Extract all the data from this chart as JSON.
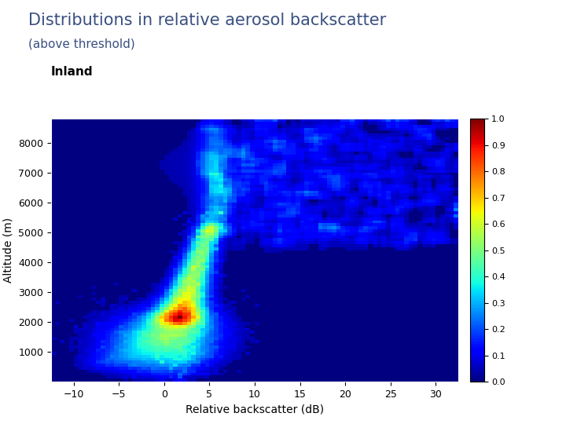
{
  "title": "Distributions in relative aerosol backscatter",
  "subtitle": "(above threshold)",
  "label": "Inland",
  "xlabel": "Relative backscatter (dB)",
  "ylabel": "Altitude (m)",
  "xmin": -12.5,
  "xmax": 32.5,
  "ymin": 0,
  "ymax": 8800,
  "xticks": [
    -10,
    -5,
    0,
    5,
    10,
    15,
    20,
    25,
    30
  ],
  "yticks": [
    1000,
    2000,
    3000,
    4000,
    5000,
    6000,
    7000,
    8000
  ],
  "colorbar_ticks": [
    0,
    0.1,
    0.2,
    0.3,
    0.4,
    0.5,
    0.6,
    0.7,
    0.8,
    0.9,
    1.0
  ],
  "background_color": "#ffffff",
  "title_color": "#3a5080",
  "label_color": "#000000",
  "cmap": "jet"
}
